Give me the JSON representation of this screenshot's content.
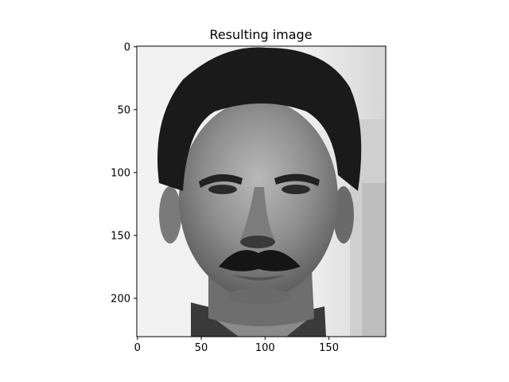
{
  "chart_data": {
    "type": "image",
    "title": "Resulting image",
    "xlabel": "",
    "ylabel": "",
    "xlim": [
      -0.5,
      194.5
    ],
    "ylim": [
      230.5,
      -0.5
    ],
    "x_ticks": [
      0,
      50,
      100,
      150
    ],
    "y_ticks": [
      0,
      50,
      100,
      150,
      200
    ],
    "colormap": "gray",
    "grid": false,
    "image_content": "grayscale portrait photograph of a man's face"
  }
}
